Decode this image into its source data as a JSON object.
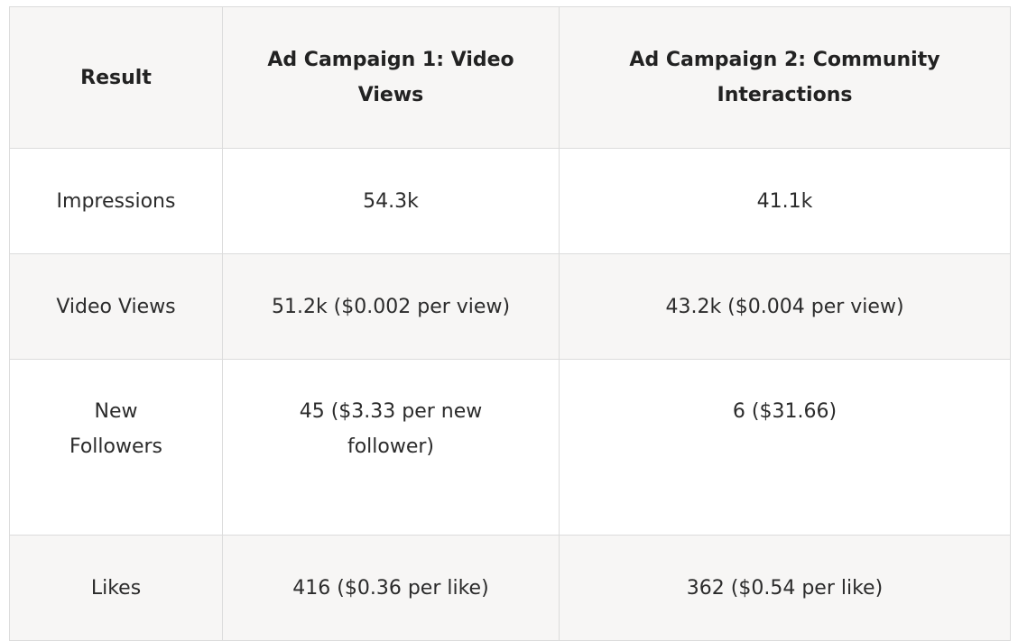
{
  "table": {
    "headers": [
      "Result",
      "Ad Campaign 1: Video Views",
      "Ad Campaign 2: Community Interactions"
    ],
    "rows": [
      [
        "Impressions",
        "54.3k",
        "41.1k"
      ],
      [
        "Video Views",
        "51.2k ($0.002 per view)",
        "43.2k ($0.004 per view)"
      ],
      [
        "New Followers",
        "45 ($3.33 per new follower)",
        "6 ($31.66)"
      ],
      [
        "Likes",
        "416 ($0.36 per like)",
        "362 ($0.54 per like)"
      ]
    ]
  }
}
